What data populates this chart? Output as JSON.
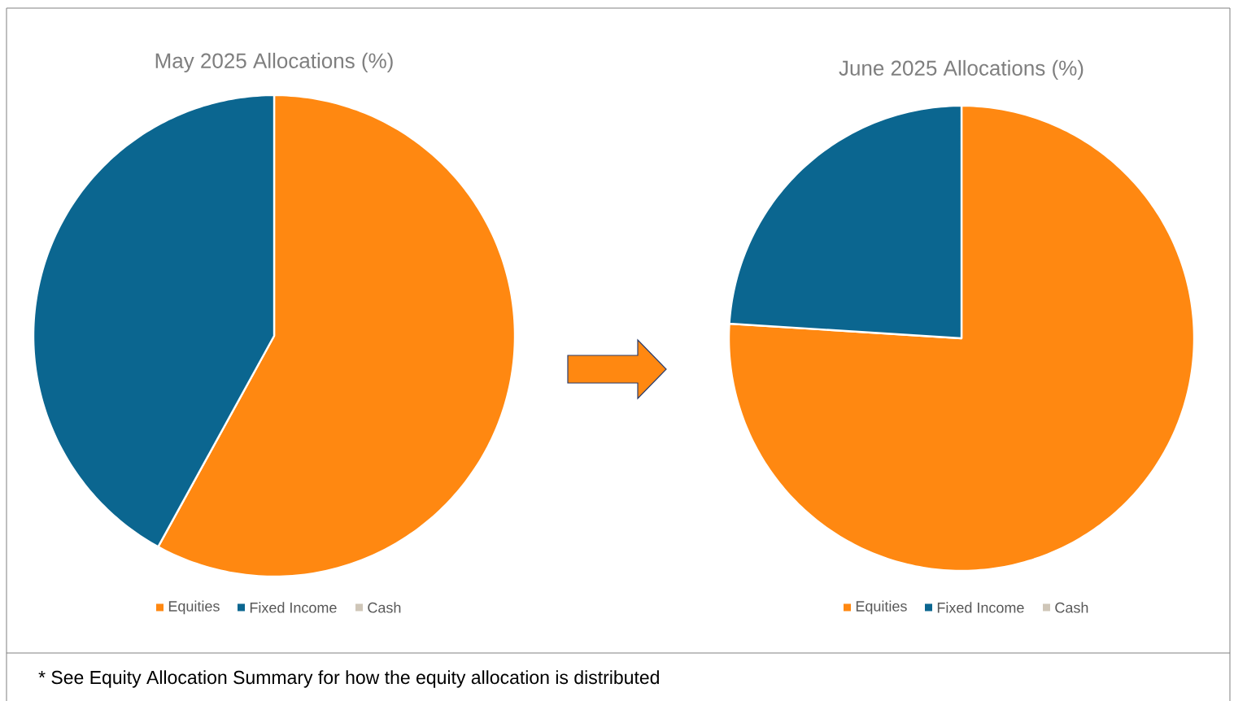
{
  "chart_data": [
    {
      "type": "pie",
      "title": "May 2025 Allocations (%)",
      "categories": [
        "Equities",
        "Fixed Income",
        "Cash"
      ],
      "values": [
        58,
        42,
        0
      ],
      "colors": [
        "#ff8811",
        "#0b6690",
        "#cfc6b8"
      ],
      "legend": "bottom",
      "annotations": [
        "* See Equity Allocation Summary for how the equity allocation is distributed"
      ]
    },
    {
      "type": "pie",
      "title": "June 2025 Allocations (%)",
      "categories": [
        "Equities",
        "Fixed Income",
        "Cash"
      ],
      "values": [
        76,
        24,
        0
      ],
      "colors": [
        "#ff8811",
        "#0b6690",
        "#cfc6b8"
      ],
      "legend": "bottom"
    }
  ]
}
